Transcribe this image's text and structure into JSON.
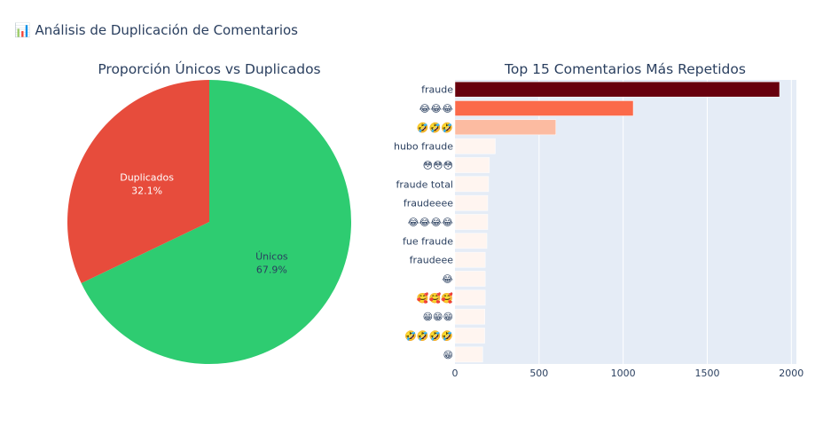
{
  "header": {
    "icon": "bar-chart-icon",
    "icon_glyph": "📊",
    "title": "Análisis de Duplicación de Comentarios"
  },
  "chart_data": [
    {
      "type": "pie",
      "title": "Proporción Únicos vs Duplicados",
      "slices": [
        {
          "label": "Únicos",
          "percent": 67.9,
          "percent_text": "67.9%",
          "color": "#2ecc71"
        },
        {
          "label": "Duplicados",
          "percent": 32.1,
          "percent_text": "32.1%",
          "color": "#e74c3c"
        }
      ]
    },
    {
      "type": "bar",
      "orientation": "horizontal",
      "title": "Top 15 Comentarios Más Repetidos",
      "categories": [
        "fraude",
        "😂😂😂",
        "🤣🤣🤣",
        "hubo fraude",
        "😳😳😳",
        "fraude total",
        "fraudeeee",
        "😂😂😂😂",
        "fue fraude",
        "fraudeee",
        "😂",
        "🥰🥰🥰",
        "😁😁😁",
        "🤣🤣🤣🤣",
        "😁"
      ],
      "values": [
        1930,
        1060,
        600,
        240,
        205,
        200,
        195,
        195,
        190,
        180,
        180,
        180,
        178,
        177,
        165
      ],
      "xlim": [
        0,
        2030
      ],
      "xticks": [
        0,
        500,
        1000,
        1500,
        2000
      ],
      "xtick_labels": [
        "0",
        "500",
        "1000",
        "1500",
        "2000"
      ],
      "colorscale": "Reds",
      "bar_colors": [
        "#67000d",
        "#fb6a4a",
        "#fcbba1",
        "#fff5f0",
        "#fff5f0",
        "#fff5f0",
        "#fff5f0",
        "#fff5f0",
        "#fff5f0",
        "#fff5f0",
        "#fff5f0",
        "#fff5f0",
        "#fff5f0",
        "#fff5f0",
        "#fff5f0"
      ],
      "plot_bg": "#e5ecf6"
    }
  ]
}
